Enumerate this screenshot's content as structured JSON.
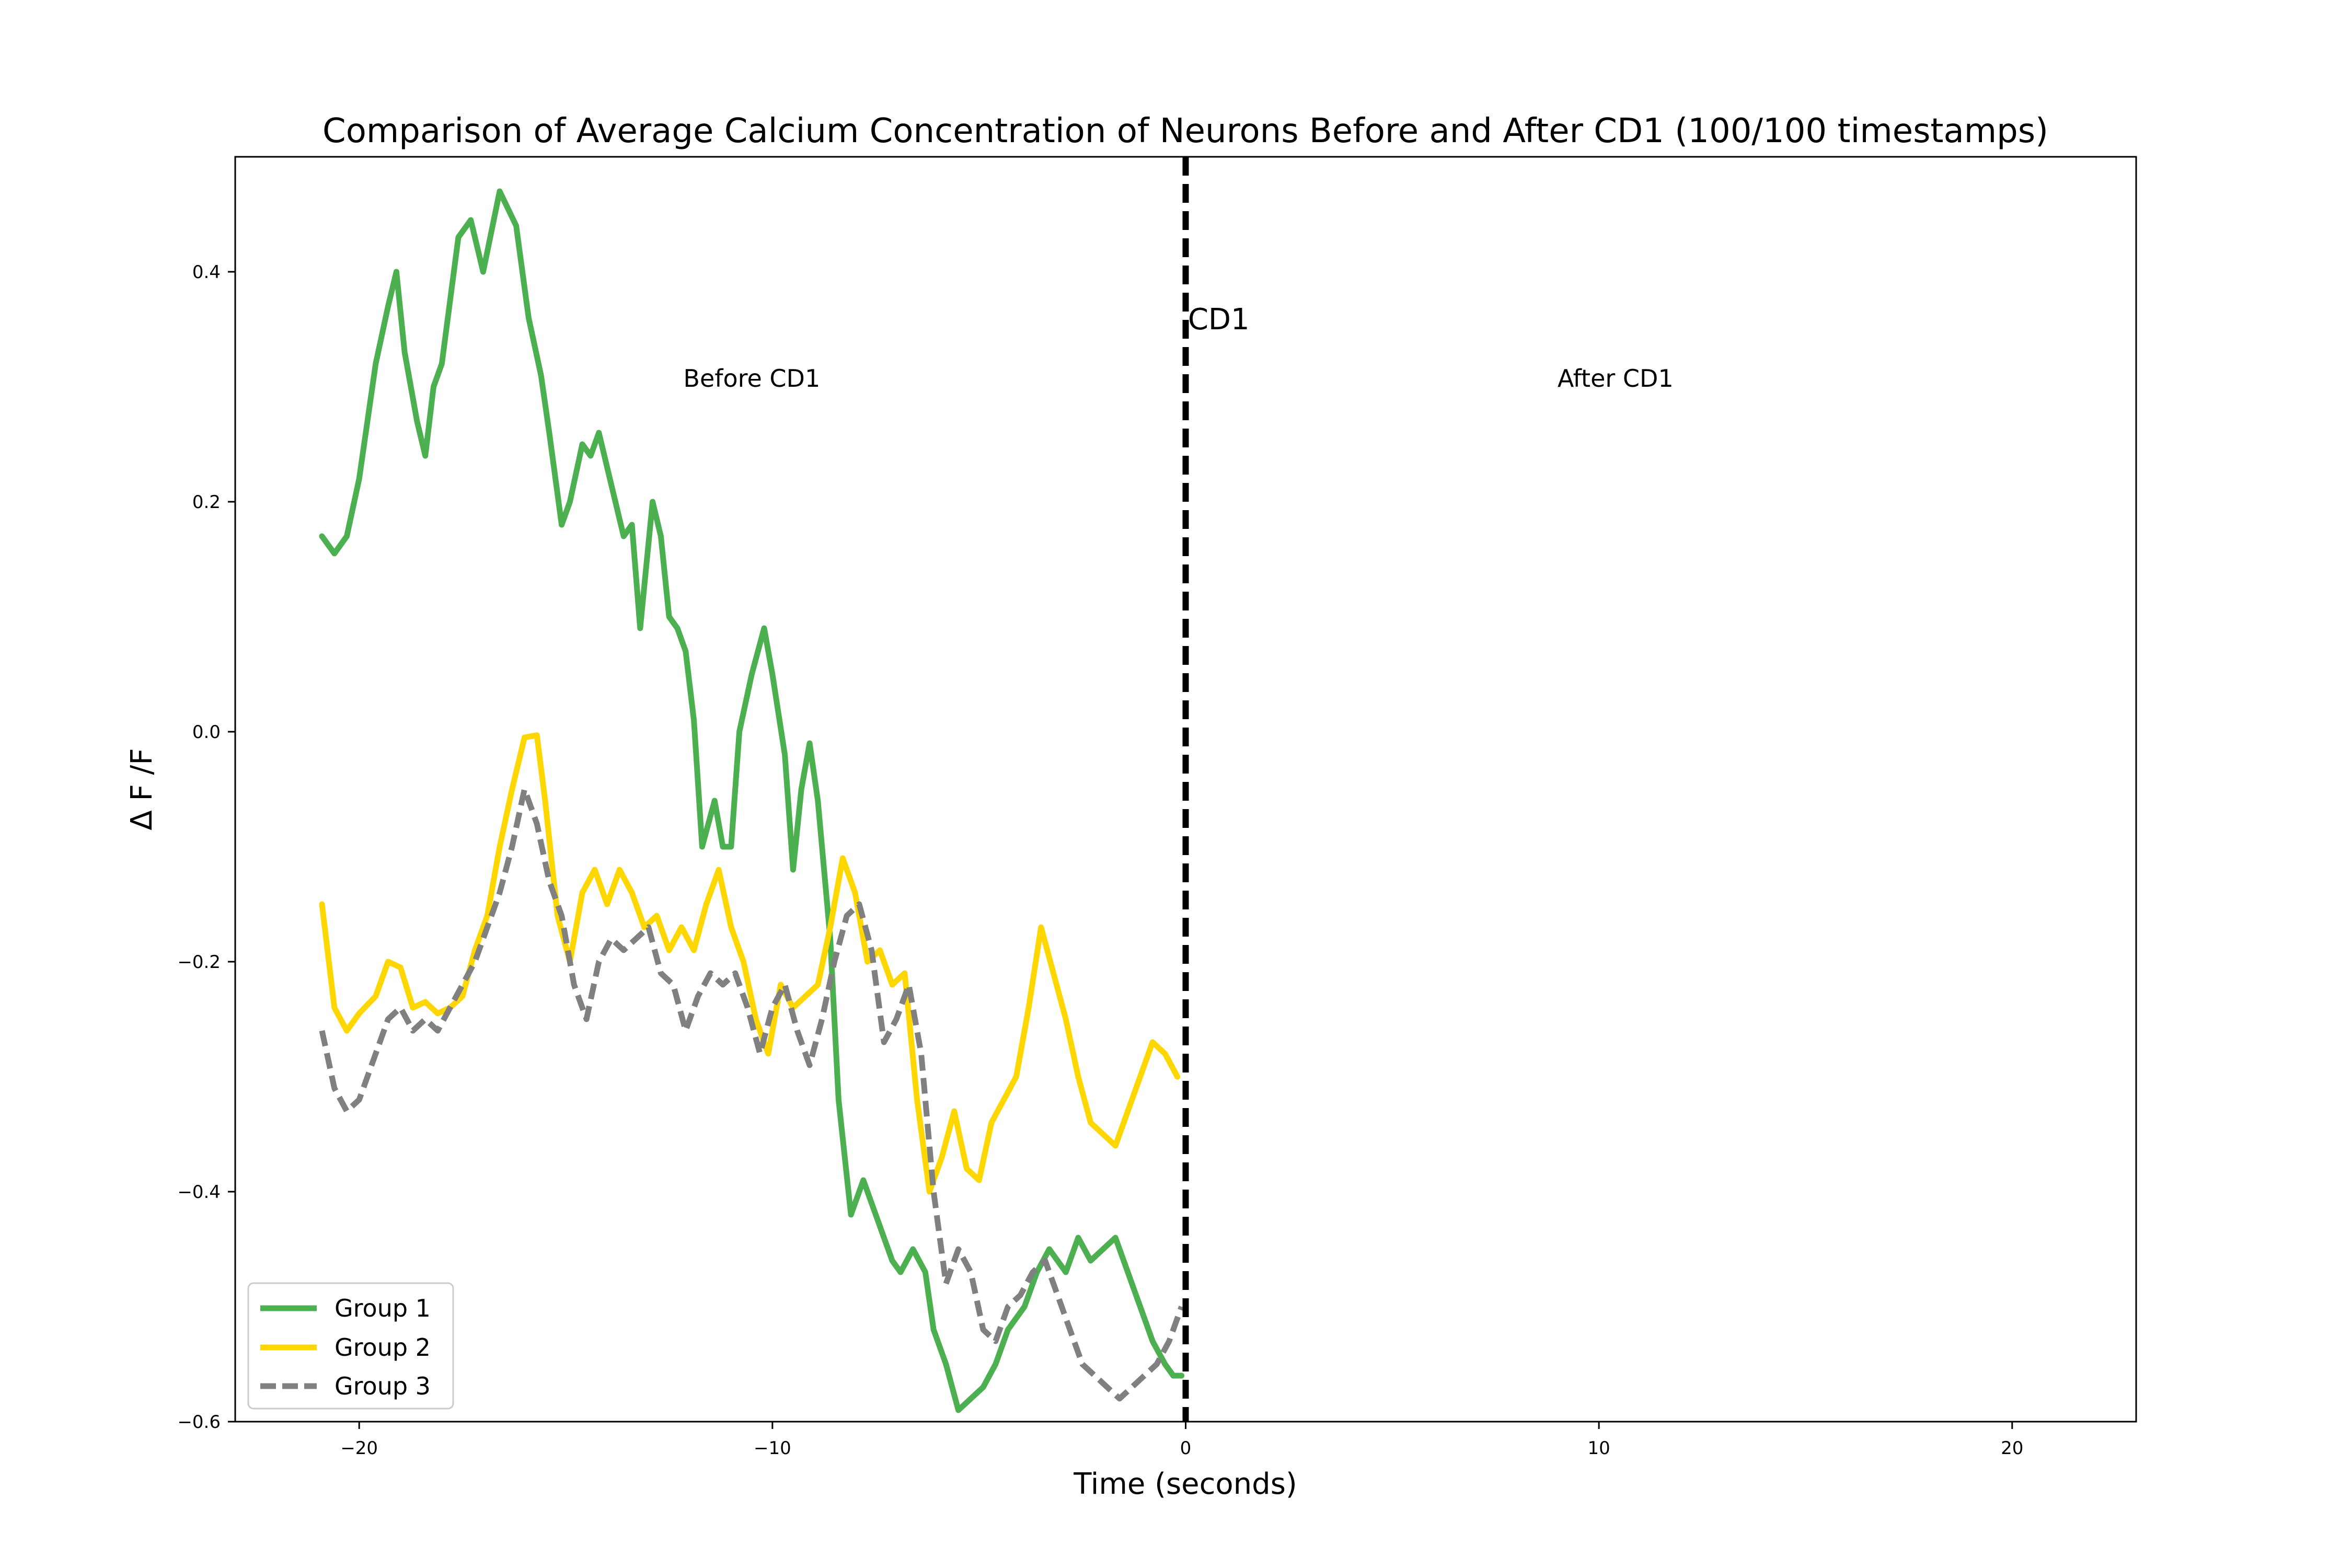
{
  "chart_data": {
    "type": "line",
    "title": "Comparison of Average Calcium Concentration of Neurons Before and After CD1 (100/100 timestamps)",
    "xlabel": "Time (seconds)",
    "ylabel": "Δ F /F",
    "xlim": [
      -23,
      23
    ],
    "ylim": [
      -0.6,
      0.5
    ],
    "xticks": [
      -20,
      -10,
      0,
      10,
      20
    ],
    "xtick_labels": [
      "−20",
      "−10",
      "0",
      "10",
      "20"
    ],
    "yticks": [
      -0.6,
      -0.4,
      -0.2,
      0.0,
      0.2,
      0.4
    ],
    "ytick_labels": [
      "−0.6",
      "−0.4",
      "−0.2",
      "0.0",
      "0.2",
      "0.4"
    ],
    "grid": false,
    "legend_position": "lower-left",
    "annotations": [
      {
        "text": "Before CD1",
        "x": -10.5,
        "y": 0.3
      },
      {
        "text": "After CD1",
        "x": 10.4,
        "y": 0.3
      },
      {
        "text": "CD1",
        "x": 0.8,
        "y": 0.35
      }
    ],
    "vline": {
      "x": 0,
      "label": "CD1",
      "color": "#000000",
      "style": "dashed"
    },
    "series": [
      {
        "name": "Group 1",
        "color": "#4caf50",
        "style": "solid",
        "x": [
          -20.9,
          -20.6,
          -20.3,
          -20.0,
          -19.6,
          -19.3,
          -19.1,
          -18.9,
          -18.6,
          -18.4,
          -18.2,
          -18.0,
          -17.6,
          -17.3,
          -17.0,
          -16.6,
          -16.2,
          -15.9,
          -15.6,
          -15.4,
          -15.1,
          -14.9,
          -14.6,
          -14.4,
          -14.2,
          -14.0,
          -13.6,
          -13.4,
          -13.2,
          -12.9,
          -12.7,
          -12.5,
          -12.3,
          -12.1,
          -11.9,
          -11.7,
          -11.4,
          -11.2,
          -11.0,
          -10.8,
          -10.5,
          -10.2,
          -10.0,
          -9.7,
          -9.5,
          -9.3,
          -9.1,
          -8.9,
          -8.6,
          -8.4,
          -8.1,
          -7.8,
          -7.5,
          -7.1,
          -6.9,
          -6.6,
          -6.3,
          -6.1,
          -5.8,
          -5.5,
          -5.2,
          -4.9,
          -4.6,
          -4.3,
          -3.9,
          -3.6,
          -3.3,
          -2.9,
          -2.6,
          -2.3,
          -2.0,
          -1.7,
          -1.4,
          -1.1,
          -0.8,
          -0.5,
          -0.3,
          -0.1
        ],
        "y": [
          0.17,
          0.155,
          0.17,
          0.22,
          0.32,
          0.37,
          0.4,
          0.33,
          0.27,
          0.24,
          0.3,
          0.32,
          0.43,
          0.445,
          0.4,
          0.47,
          0.44,
          0.36,
          0.31,
          0.26,
          0.18,
          0.2,
          0.25,
          0.24,
          0.26,
          0.23,
          0.17,
          0.18,
          0.09,
          0.2,
          0.17,
          0.1,
          0.09,
          0.07,
          0.01,
          -0.1,
          -0.06,
          -0.1,
          -0.1,
          0.0,
          0.05,
          0.09,
          0.05,
          -0.02,
          -0.12,
          -0.05,
          -0.01,
          -0.06,
          -0.18,
          -0.32,
          -0.42,
          -0.39,
          -0.42,
          -0.46,
          -0.47,
          -0.45,
          -0.47,
          -0.52,
          -0.55,
          -0.59,
          -0.58,
          -0.57,
          -0.55,
          -0.52,
          -0.5,
          -0.47,
          -0.45,
          -0.47,
          -0.44,
          -0.46,
          -0.45,
          -0.44,
          -0.47,
          -0.5,
          -0.53,
          -0.55,
          -0.56,
          -0.56
        ]
      },
      {
        "name": "Group 2",
        "color": "#ffd700",
        "style": "solid",
        "x": [
          -20.9,
          -20.6,
          -20.3,
          -20.0,
          -19.6,
          -19.3,
          -19.0,
          -18.7,
          -18.4,
          -18.1,
          -17.8,
          -17.5,
          -17.2,
          -16.9,
          -16.6,
          -16.3,
          -16.0,
          -15.7,
          -15.5,
          -15.2,
          -14.9,
          -14.6,
          -14.3,
          -14.0,
          -13.7,
          -13.4,
          -13.1,
          -12.8,
          -12.5,
          -12.2,
          -11.9,
          -11.6,
          -11.3,
          -11.0,
          -10.7,
          -10.4,
          -10.1,
          -9.8,
          -9.5,
          -9.2,
          -8.9,
          -8.6,
          -8.3,
          -8.0,
          -7.7,
          -7.4,
          -7.1,
          -6.8,
          -6.5,
          -6.2,
          -5.9,
          -5.6,
          -5.3,
          -5.0,
          -4.7,
          -4.4,
          -4.1,
          -3.8,
          -3.5,
          -3.2,
          -2.9,
          -2.6,
          -2.3,
          -2.0,
          -1.7,
          -1.4,
          -1.1,
          -0.8,
          -0.5,
          -0.2
        ],
        "y": [
          -0.15,
          -0.24,
          -0.26,
          -0.245,
          -0.23,
          -0.2,
          -0.205,
          -0.24,
          -0.235,
          -0.245,
          -0.24,
          -0.23,
          -0.19,
          -0.16,
          -0.1,
          -0.05,
          -0.005,
          -0.003,
          -0.06,
          -0.16,
          -0.2,
          -0.14,
          -0.12,
          -0.15,
          -0.12,
          -0.14,
          -0.17,
          -0.16,
          -0.19,
          -0.17,
          -0.19,
          -0.15,
          -0.12,
          -0.17,
          -0.2,
          -0.25,
          -0.28,
          -0.22,
          -0.24,
          -0.23,
          -0.22,
          -0.17,
          -0.11,
          -0.14,
          -0.2,
          -0.19,
          -0.22,
          -0.21,
          -0.32,
          -0.4,
          -0.37,
          -0.33,
          -0.38,
          -0.39,
          -0.34,
          -0.32,
          -0.3,
          -0.24,
          -0.17,
          -0.21,
          -0.25,
          -0.3,
          -0.34,
          -0.35,
          -0.36,
          -0.33,
          -0.3,
          -0.27,
          -0.28,
          -0.3
        ]
      },
      {
        "name": "Group 3",
        "color": "#808080",
        "style": "dashed",
        "x": [
          -20.9,
          -20.6,
          -20.3,
          -20.0,
          -19.6,
          -19.3,
          -19.0,
          -18.7,
          -18.4,
          -18.1,
          -17.8,
          -17.5,
          -17.2,
          -16.9,
          -16.6,
          -16.3,
          -16.0,
          -15.7,
          -15.4,
          -15.1,
          -14.8,
          -14.5,
          -14.2,
          -13.9,
          -13.6,
          -13.3,
          -13.0,
          -12.7,
          -12.4,
          -12.1,
          -11.8,
          -11.5,
          -11.2,
          -10.9,
          -10.6,
          -10.3,
          -10.0,
          -9.7,
          -9.4,
          -9.1,
          -8.8,
          -8.5,
          -8.2,
          -7.9,
          -7.6,
          -7.3,
          -7.0,
          -6.7,
          -6.4,
          -6.1,
          -5.8,
          -5.5,
          -5.2,
          -4.9,
          -4.6,
          -4.3,
          -4.0,
          -3.7,
          -3.4,
          -3.1,
          -2.8,
          -2.5,
          -2.2,
          -1.9,
          -1.6,
          -1.3,
          -1.0,
          -0.7,
          -0.4,
          -0.1
        ],
        "y": [
          -0.26,
          -0.31,
          -0.33,
          -0.32,
          -0.28,
          -0.25,
          -0.24,
          -0.26,
          -0.25,
          -0.26,
          -0.24,
          -0.22,
          -0.2,
          -0.17,
          -0.14,
          -0.1,
          -0.05,
          -0.08,
          -0.13,
          -0.16,
          -0.22,
          -0.25,
          -0.2,
          -0.18,
          -0.19,
          -0.18,
          -0.17,
          -0.21,
          -0.22,
          -0.26,
          -0.23,
          -0.21,
          -0.22,
          -0.21,
          -0.24,
          -0.28,
          -0.24,
          -0.22,
          -0.26,
          -0.29,
          -0.25,
          -0.2,
          -0.16,
          -0.15,
          -0.19,
          -0.27,
          -0.25,
          -0.22,
          -0.28,
          -0.4,
          -0.48,
          -0.45,
          -0.47,
          -0.52,
          -0.53,
          -0.5,
          -0.49,
          -0.47,
          -0.46,
          -0.49,
          -0.52,
          -0.55,
          -0.56,
          -0.57,
          -0.58,
          -0.57,
          -0.56,
          -0.55,
          -0.53,
          -0.5
        ]
      }
    ]
  }
}
